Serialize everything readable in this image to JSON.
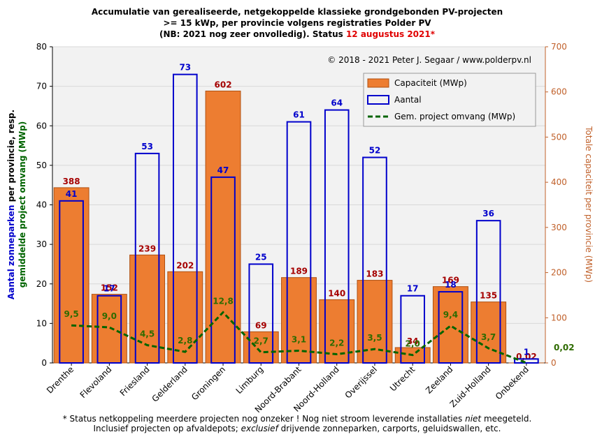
{
  "chart_data": {
    "type": "bar",
    "title": [
      "Accumulatie van gerealiseerde, netgekoppelde klassieke grondgebonden PV-projecten",
      ">= 15 kWp, per provincie volgens registraties Polder PV",
      "(NB: 2021 nog zeer onvolledig). Status "
    ],
    "status": "12 augustus 2021*",
    "copyright": "© 2018 - 2021 Peter J. Segaar / www.polderpv.nl",
    "ylabel": [
      "Aantal zonneparken",
      " per provincie, resp.",
      "gemiddelde project omvang (MWp)"
    ],
    "y2label": "Totale capaciteit per provincie (MWp)",
    "footnote": [
      [
        "* Status netkoppeling meerdere projecten nog onzeker ! Nog niet stroom leverende installaties ",
        "niet",
        " meegeteld."
      ],
      [
        "Inclusief projecten op afvaldepots; ",
        "exclusief",
        " drijvende zonneparken, carports, geluidswallen, etc."
      ]
    ],
    "categories": [
      "Drenthe",
      "Flevoland",
      "Friesland",
      "Gelderland",
      "Groningen",
      "Limburg",
      "Noord-Brabant",
      "Noord-Holland",
      "Overijssel",
      "Utrecht",
      "Zeeland",
      "Zuid-Holland",
      "Onbekend"
    ],
    "series": [
      {
        "name": "Capaciteit (MWp)",
        "type": "bar",
        "axis": "y2",
        "color": "#ed7d31",
        "label_color": "#a50000",
        "values": [
          388,
          152,
          239,
          202,
          602,
          69,
          189,
          140,
          183,
          34,
          169,
          135,
          0.02
        ],
        "value_labels": [
          "388",
          "152",
          "239",
          "202",
          "602",
          "69",
          "189",
          "140",
          "183",
          "34",
          "169",
          "135",
          "0,02"
        ]
      },
      {
        "name": "Aantal",
        "type": "outline-bar",
        "color": "#0000cc",
        "label_color": "#0000cc",
        "values": [
          41,
          17,
          53,
          73,
          47,
          25,
          61,
          64,
          52,
          17,
          18,
          36,
          1
        ],
        "value_labels": [
          "41",
          "17",
          "53",
          "73",
          "47",
          "25",
          "61",
          "64",
          "52",
          "17",
          "18",
          "36",
          "1"
        ]
      },
      {
        "name": "Gem. project omvang (MWp)",
        "type": "line",
        "color": "#006400",
        "label_color": "#2e6b00",
        "values": [
          9.5,
          9.0,
          4.5,
          2.8,
          12.8,
          2.7,
          3.1,
          2.2,
          3.5,
          2.0,
          9.4,
          3.7,
          0.02
        ],
        "value_labels": [
          "9,5",
          "9,0",
          "4,5",
          "2,8",
          "12,8",
          "2,7",
          "3,1",
          "2,2",
          "3,5",
          "2,0",
          "9,4",
          "3,7",
          "0,02"
        ]
      }
    ],
    "ylim": [
      0,
      80
    ],
    "yticks": [
      0,
      10,
      20,
      30,
      40,
      50,
      60,
      70,
      80
    ],
    "y2lim": [
      0,
      700
    ],
    "y2ticks": [
      0,
      100,
      200,
      300,
      400,
      500,
      600,
      700
    ],
    "grid": true,
    "legend": "upper right"
  }
}
